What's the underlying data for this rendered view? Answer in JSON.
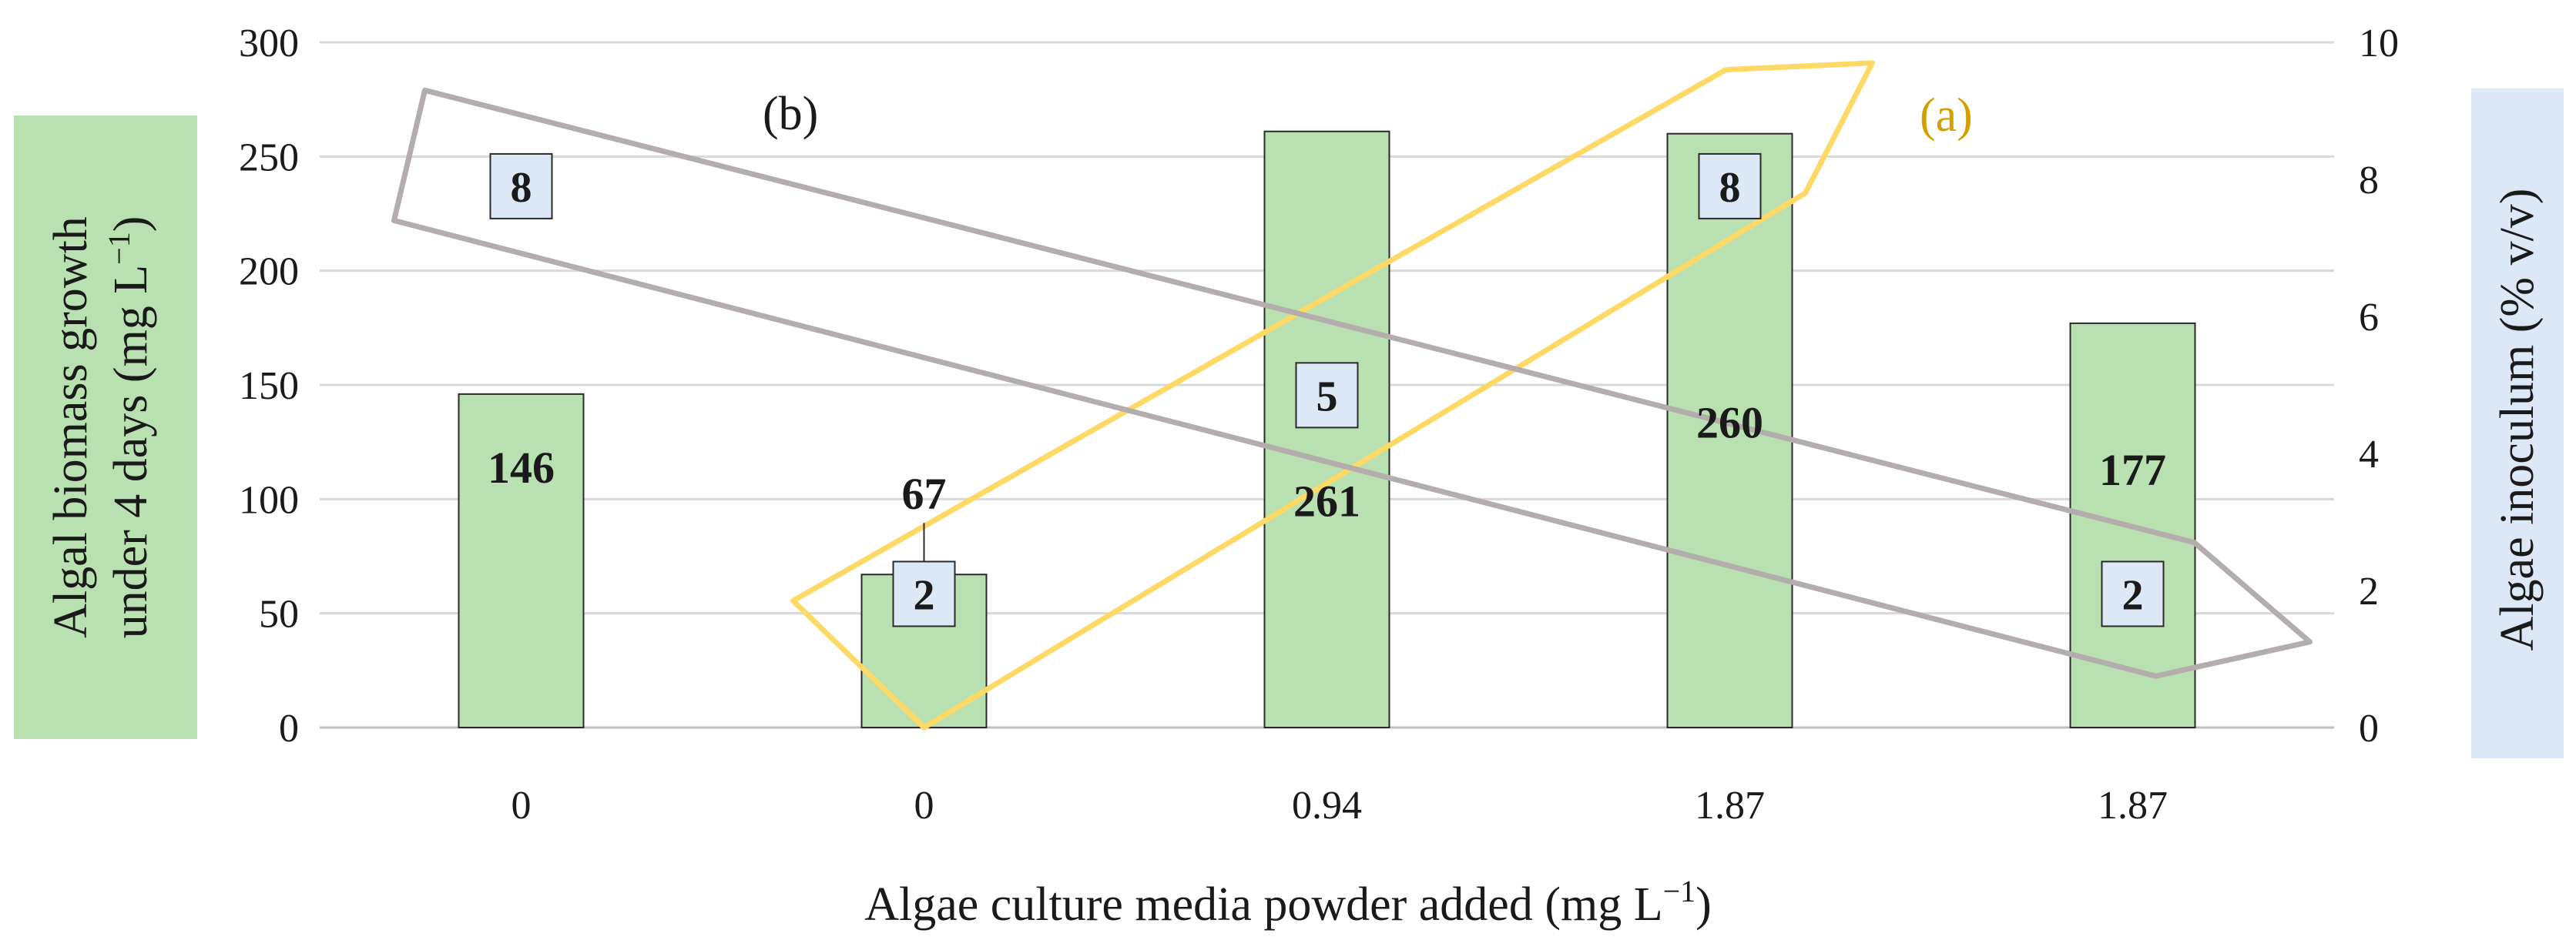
{
  "chart_data": {
    "type": "bar",
    "categories": [
      "0",
      "0",
      "0.94",
      "1.87",
      "1.87"
    ],
    "series": [
      {
        "name": "",
        "axis": "left",
        "values": [
          146,
          67,
          261,
          260,
          177
        ],
        "data_labels": [
          "146",
          "67",
          "261",
          "260",
          "177"
        ],
        "color": "#b8e0b0"
      },
      {
        "name": "",
        "axis": "right",
        "values": [
          8,
          2,
          5,
          8,
          2
        ],
        "data_labels": [
          "8",
          "2",
          "5",
          "8",
          "2"
        ],
        "color": "#dce8f5"
      }
    ],
    "xlabel": "Algae culture media powder added (mg L",
    "xlabel_sup": "−1",
    "xlabel_end": ")",
    "ylabel_line1": "Algal biomass growth",
    "ylabel_line2": "under 4 days  (mg L",
    "ylabel_sup": "−1",
    "ylabel_end": ")",
    "y2label": "Algae inoculum (% v/v)",
    "ylim": [
      0,
      300
    ],
    "yticks": [
      "0",
      "50",
      "100",
      "150",
      "200",
      "250",
      "300"
    ],
    "y2lim": [
      0,
      10
    ],
    "y2ticks": [
      "0",
      "2",
      "4",
      "6",
      "8",
      "10"
    ],
    "grid": true,
    "annotations": [
      {
        "text": "(a)",
        "color": "#d4a000"
      },
      {
        "text": "(b)",
        "color": "#1a1a1a"
      }
    ],
    "ylabel_bg": "#b8e0b0",
    "y2label_bg": "#dce8f5",
    "outline_a_color": "#ffd966",
    "outline_b_color": "#b3adad"
  }
}
